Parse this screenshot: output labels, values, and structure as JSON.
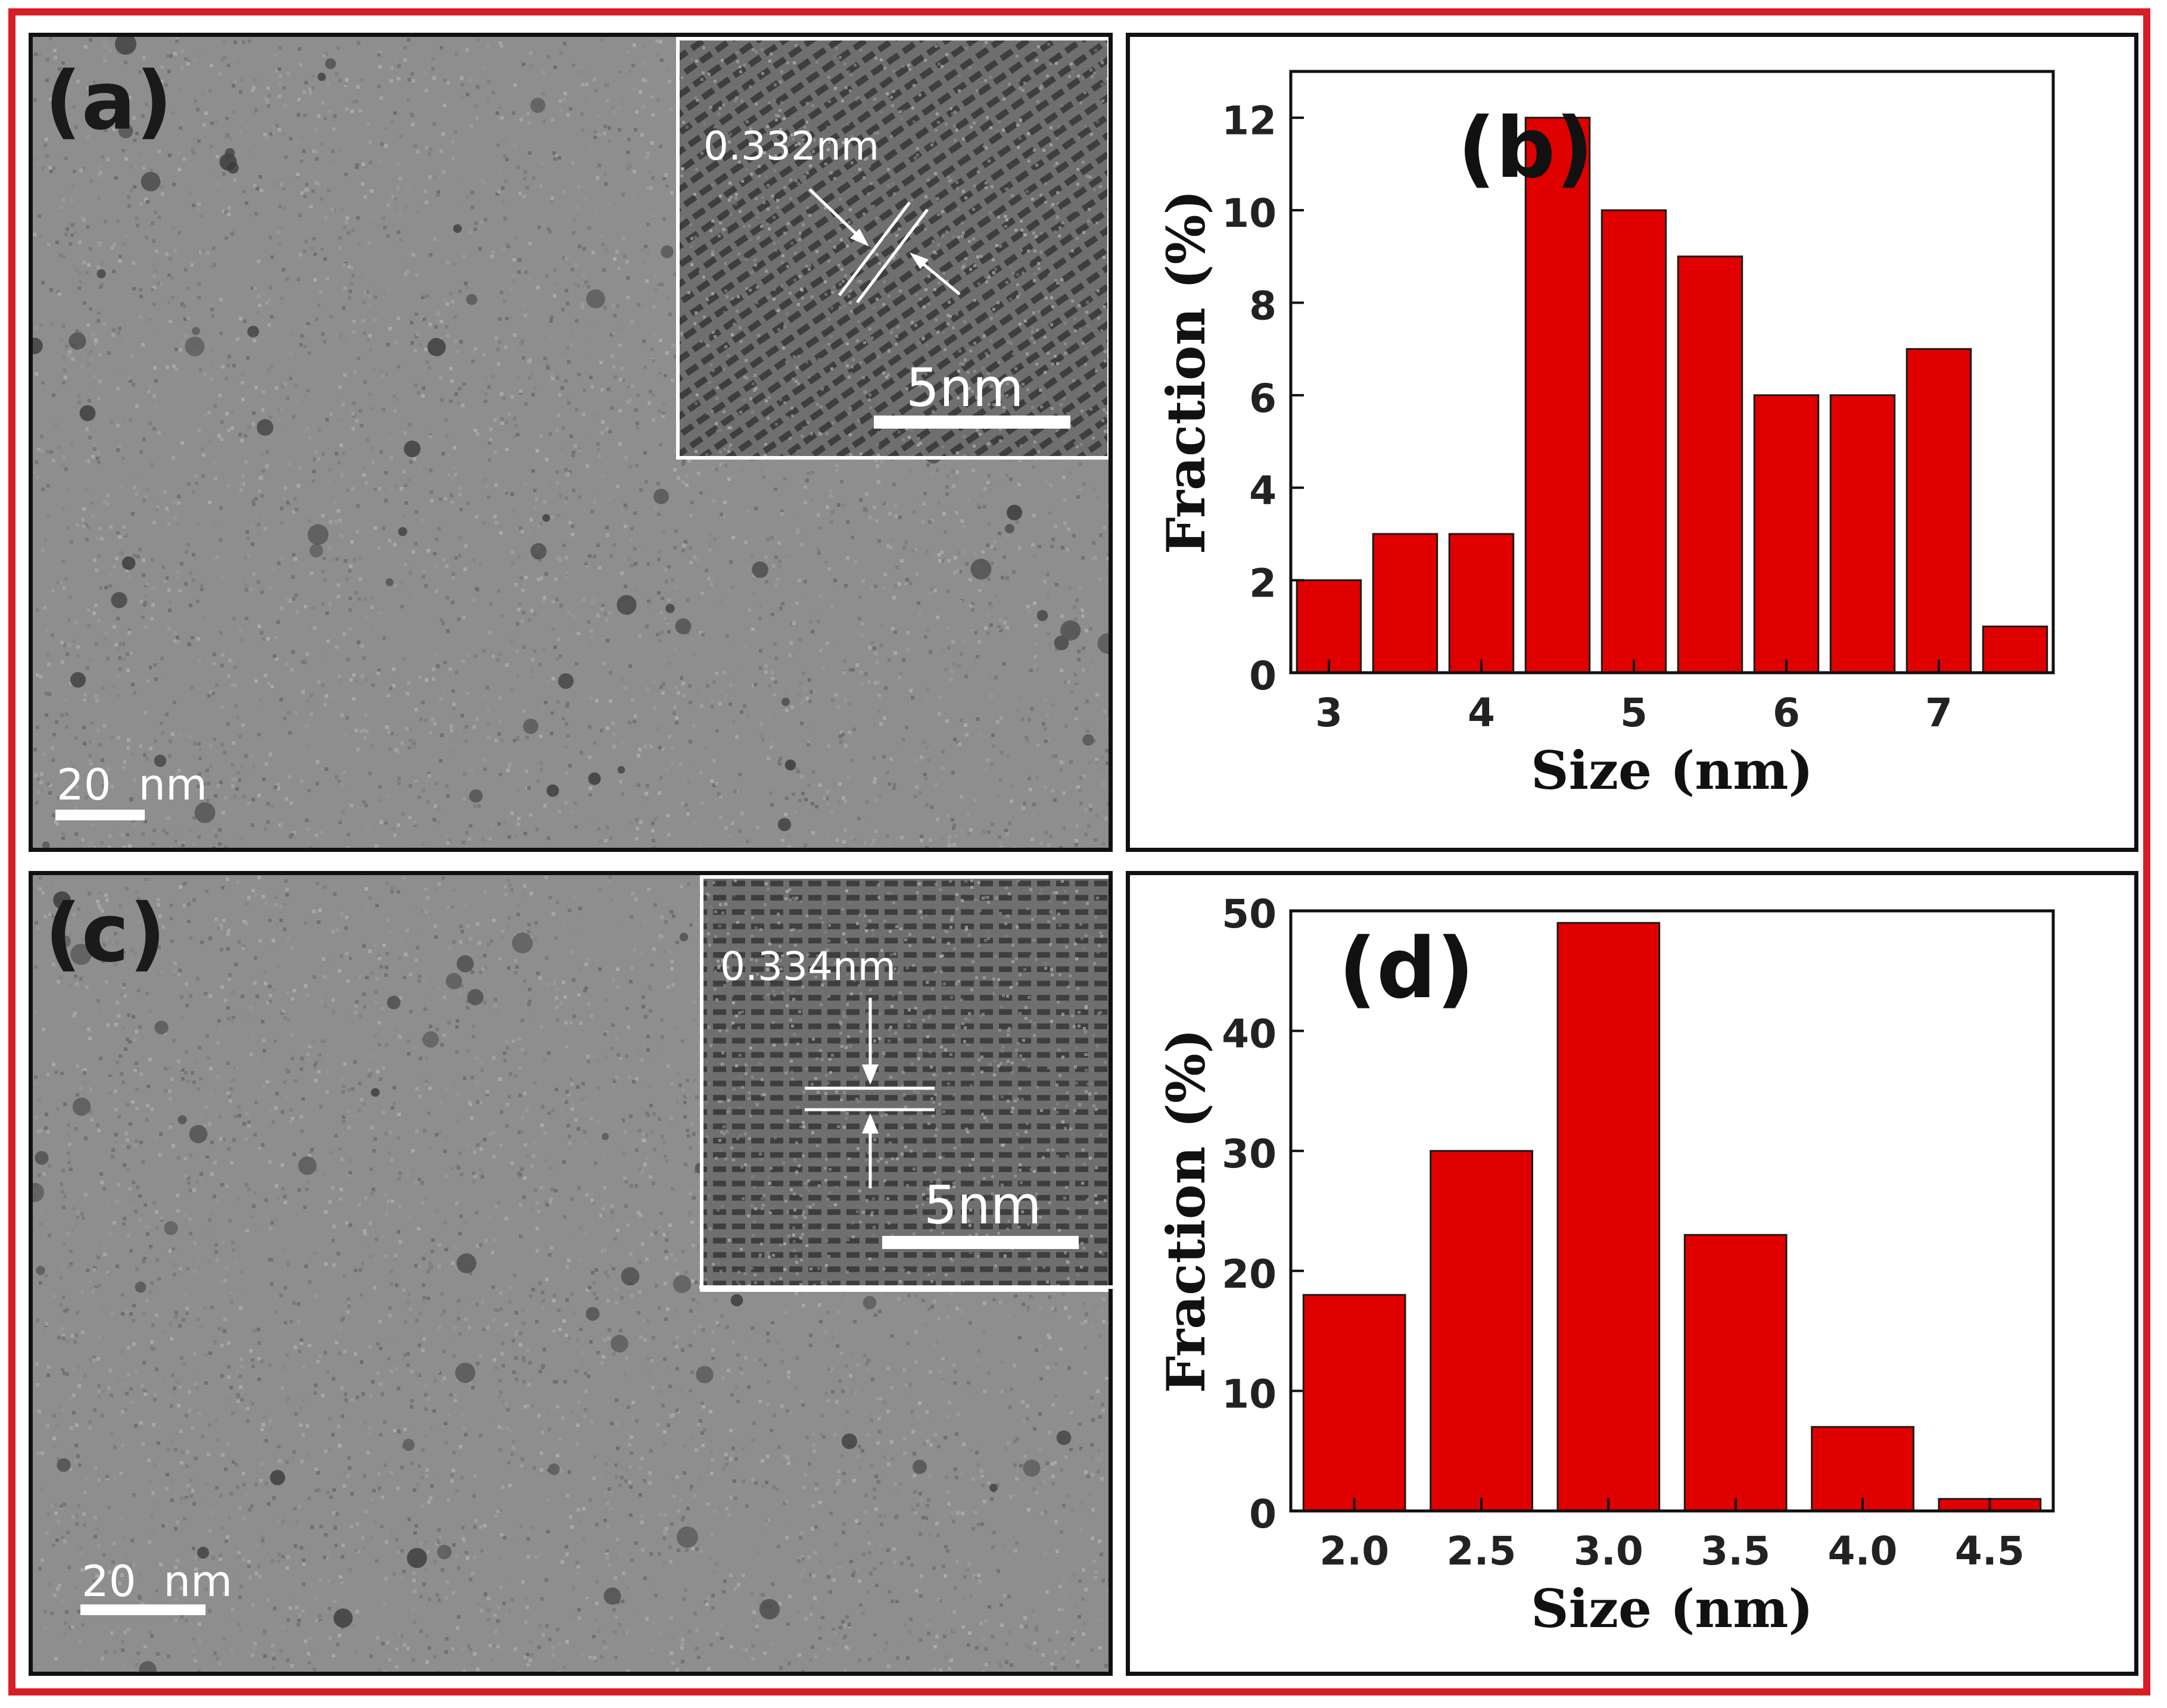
{
  "figure": {
    "frame_color": "#d81e24",
    "bar_color": "#e00000"
  },
  "panel_a": {
    "label": "(a)",
    "scale_label": "20  nm",
    "inset": {
      "spacing_label": "0.332nm",
      "scale_label": "5nm"
    }
  },
  "panel_c": {
    "label": "(c)",
    "scale_label": "20  nm",
    "inset": {
      "spacing_label": "0.334nm",
      "scale_label": "5nm"
    }
  },
  "chart_data": [
    {
      "panel": "b",
      "panel_label": "(b)",
      "type": "bar",
      "xlabel": "Size (nm)",
      "ylabel": "Fraction (%)",
      "bin_centers": [
        3.0,
        3.5,
        4.0,
        4.5,
        5.0,
        5.5,
        6.0,
        6.5,
        7.0,
        7.5
      ],
      "values": [
        2,
        3,
        3,
        12,
        10,
        9,
        6,
        6,
        7,
        1
      ],
      "bar_width": 0.42,
      "xlim": [
        2.75,
        7.75
      ],
      "ylim": [
        0,
        13
      ],
      "xticks": [
        3,
        4,
        5,
        6,
        7
      ],
      "xtick_labels": [
        "3",
        "4",
        "5",
        "6",
        "7"
      ],
      "yticks": [
        0,
        2,
        4,
        6,
        8,
        10,
        12
      ],
      "ytick_labels": [
        "0",
        "2",
        "4",
        "6",
        "8",
        "10",
        "12"
      ],
      "grid": false,
      "legend": "none"
    },
    {
      "panel": "d",
      "panel_label": "(d)",
      "type": "bar",
      "xlabel": "Size (nm)",
      "ylabel": "Fraction (%)",
      "bin_centers": [
        2.0,
        2.5,
        3.0,
        3.5,
        4.0,
        4.5
      ],
      "values": [
        18,
        30,
        49,
        23,
        7,
        1
      ],
      "bar_width": 0.4,
      "xlim": [
        1.75,
        4.75
      ],
      "ylim": [
        0,
        50
      ],
      "xticks": [
        2.0,
        2.5,
        3.0,
        3.5,
        4.0,
        4.5
      ],
      "xtick_labels": [
        "2.0",
        "2.5",
        "3.0",
        "3.5",
        "4.0",
        "4.5"
      ],
      "yticks": [
        0,
        10,
        20,
        30,
        40,
        50
      ],
      "ytick_labels": [
        "0",
        "10",
        "20",
        "30",
        "40",
        "50"
      ],
      "grid": false,
      "legend": "none"
    }
  ]
}
